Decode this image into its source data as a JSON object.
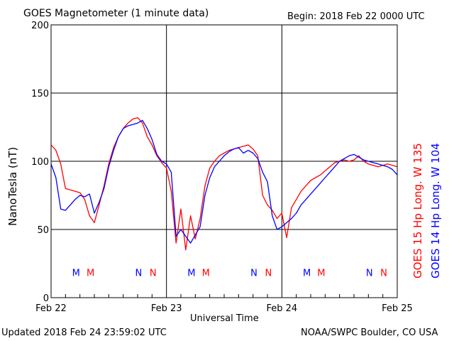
{
  "header": {
    "title": "GOES Magnetometer (1 minute data)",
    "begin": "Begin:  2018 Feb 22 0000 UTC"
  },
  "footer": {
    "updated": "Updated 2018 Feb 24 23:59:02 UTC",
    "credit": "NOAA/SWPC Boulder, CO USA"
  },
  "colors": {
    "goes15": "#ff0000",
    "goes14": "#0000ff",
    "axes": "#000000"
  },
  "chart_data": {
    "type": "line",
    "ylabel": "NanoTesla (nT)",
    "xlabel": "Universal Time",
    "ylim": [
      0,
      200
    ],
    "yticks": [
      0,
      50,
      100,
      150,
      200
    ],
    "xlim": [
      0,
      72
    ],
    "xticks": [
      {
        "hour": 0,
        "label": "Feb 22"
      },
      {
        "hour": 24,
        "label": "Feb 23"
      },
      {
        "hour": 48,
        "label": "Feb 24"
      },
      {
        "hour": 72,
        "label": "Feb 25"
      }
    ],
    "grid": true,
    "x_unit": "hours since 2018 Feb 22 0000 UTC",
    "series": [
      {
        "name": "GOES 15 Hp  Long. W 135",
        "color": "#ff0000",
        "x": [
          0,
          1,
          2,
          3,
          4,
          5,
          6,
          7,
          8,
          9,
          10,
          11,
          12,
          13,
          14,
          15,
          16,
          17,
          18,
          19,
          20,
          21,
          22,
          23,
          24,
          25,
          26,
          27,
          28,
          29,
          30,
          31,
          32,
          33,
          34,
          35,
          36,
          37,
          38,
          39,
          40,
          41,
          42,
          43,
          44,
          45,
          46,
          47,
          48,
          49,
          50,
          51,
          52,
          53,
          54,
          55,
          56,
          57,
          58,
          59,
          60,
          61,
          62,
          63,
          64,
          65,
          66,
          67,
          68,
          69,
          70,
          71,
          72
        ],
        "y": [
          112,
          108,
          98,
          80,
          79,
          78,
          77,
          72,
          60,
          55,
          68,
          82,
          98,
          110,
          118,
          124,
          128,
          131,
          132,
          128,
          118,
          112,
          104,
          99,
          95,
          78,
          40,
          65,
          35,
          60,
          43,
          58,
          82,
          95,
          100,
          104,
          106,
          108,
          109,
          110,
          111,
          112,
          109,
          104,
          75,
          68,
          64,
          58,
          62,
          44,
          66,
          72,
          78,
          82,
          86,
          88,
          90,
          93,
          96,
          99,
          100,
          101,
          100,
          101,
          104,
          100,
          98,
          97,
          96,
          97,
          98,
          97,
          96
        ],
        "markers": [
          {
            "hour": 8.2,
            "label": "M"
          },
          {
            "hour": 21.2,
            "label": "N"
          },
          {
            "hour": 32.2,
            "label": "M"
          },
          {
            "hour": 45.2,
            "label": "N"
          },
          {
            "hour": 56.2,
            "label": "M"
          },
          {
            "hour": 69.2,
            "label": "N"
          }
        ]
      },
      {
        "name": "GOES 14 Hp  Long. W 104",
        "color": "#0000ff",
        "x": [
          0,
          1,
          2,
          3,
          4,
          5,
          6,
          7,
          8,
          9,
          10,
          11,
          12,
          13,
          14,
          15,
          16,
          17,
          18,
          19,
          20,
          21,
          22,
          23,
          24,
          25,
          26,
          27,
          28,
          29,
          30,
          31,
          32,
          33,
          34,
          35,
          36,
          37,
          38,
          39,
          40,
          41,
          42,
          43,
          44,
          45,
          46,
          47,
          48,
          49,
          50,
          51,
          52,
          53,
          54,
          55,
          56,
          57,
          58,
          59,
          60,
          61,
          62,
          63,
          64,
          65,
          66,
          67,
          68,
          69,
          70,
          71,
          72
        ],
        "y": [
          98,
          88,
          65,
          64,
          68,
          72,
          75,
          74,
          76,
          62,
          70,
          80,
          96,
          108,
          118,
          124,
          126,
          127,
          128,
          130,
          124,
          116,
          105,
          100,
          98,
          92,
          45,
          50,
          45,
          40,
          46,
          52,
          75,
          88,
          96,
          100,
          104,
          107,
          109,
          110,
          106,
          108,
          106,
          102,
          92,
          85,
          60,
          50,
          52,
          55,
          58,
          62,
          68,
          72,
          76,
          80,
          84,
          88,
          92,
          96,
          100,
          102,
          104,
          105,
          103,
          101,
          100,
          99,
          98,
          97,
          96,
          94,
          90
        ],
        "markers": [
          {
            "hour": 5.2,
            "label": "M"
          },
          {
            "hour": 18.2,
            "label": "N"
          },
          {
            "hour": 29.2,
            "label": "M"
          },
          {
            "hour": 42.2,
            "label": "N"
          },
          {
            "hour": 53.2,
            "label": "M"
          },
          {
            "hour": 66.2,
            "label": "N"
          }
        ]
      }
    ]
  }
}
